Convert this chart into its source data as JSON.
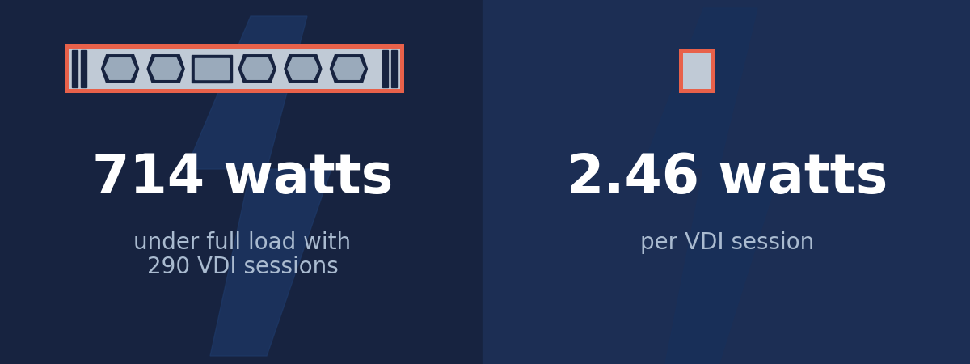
{
  "bg_color_left": "#172340",
  "bg_color_right": "#1c2e54",
  "accent_color": "#e8614a",
  "icon_fill_color": "#c0cad6",
  "icon_inner_color": "#9aaabb",
  "icon_dark_color": "#172340",
  "text_white": "#ffffff",
  "text_light": "#aabbd0",
  "lightning_left_color": "#1e3a6a",
  "lightning_right_color": "#18305a",
  "value1": "714 watts",
  "label1_line1": "under full load with",
  "label1_line2": "290 VDI sessions",
  "value2": "2.46 watts",
  "label2": "per VDI session",
  "value_fontsize": 48,
  "label_fontsize": 20,
  "fig_width": 12,
  "fig_height": 4.5,
  "panel_split": 597
}
